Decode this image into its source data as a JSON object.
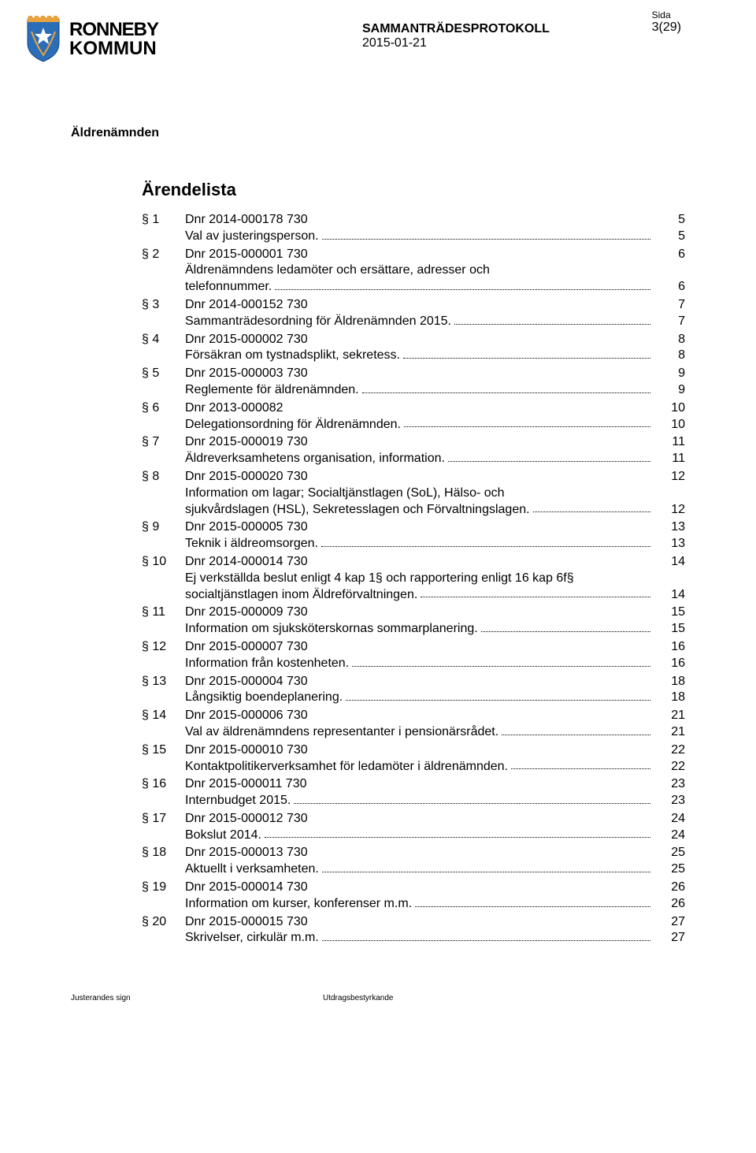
{
  "logo": {
    "top_text": "RONNEBY",
    "bottom_text": "KOMMUN"
  },
  "header": {
    "title": "SAMMANTRÄDESPROTOKOLL",
    "date": "2015-01-21",
    "sida_label": "Sida",
    "page_num": "3(29)"
  },
  "section_label": "Äldrenämnden",
  "list_title": "Ärendelista",
  "items": [
    {
      "section": "§ 1",
      "dnr": "Dnr 2014-000178 730",
      "page": "5",
      "desc": "Val av justeringsperson.",
      "desc_page": "5"
    },
    {
      "section": "§ 2",
      "dnr": "Dnr 2015-000001 730",
      "page": "6",
      "desc": "Äldrenämndens ledamöter och ersättare, adresser och\ntelefonnummer.",
      "desc_page": "6"
    },
    {
      "section": "§ 3",
      "dnr": "Dnr 2014-000152 730",
      "page": "7",
      "desc": "Sammanträdesordning för Äldrenämnden 2015.",
      "desc_page": "7"
    },
    {
      "section": "§ 4",
      "dnr": "Dnr 2015-000002 730",
      "page": "8",
      "desc": "Försäkran om tystnadsplikt, sekretess.",
      "desc_page": "8"
    },
    {
      "section": "§ 5",
      "dnr": "Dnr 2015-000003 730",
      "page": "9",
      "desc": "Reglemente för äldrenämnden.",
      "desc_page": "9"
    },
    {
      "section": "§ 6",
      "dnr": "Dnr 2013-000082",
      "page": "10",
      "desc": "Delegationsordning för Äldrenämnden.",
      "desc_page": "10"
    },
    {
      "section": "§ 7",
      "dnr": "Dnr 2015-000019 730",
      "page": "11",
      "desc": "Äldreverksamhetens organisation, information.",
      "desc_page": "11"
    },
    {
      "section": "§ 8",
      "dnr": "Dnr 2015-000020 730",
      "page": "12",
      "desc": "Information om lagar; Socialtjänstlagen (SoL), Hälso- och\nsjukvårdslagen (HSL), Sekretesslagen och Förvaltningslagen.",
      "desc_page": "12"
    },
    {
      "section": "§ 9",
      "dnr": "Dnr 2015-000005 730",
      "page": "13",
      "desc": "Teknik i äldreomsorgen.",
      "desc_page": "13"
    },
    {
      "section": "§ 10",
      "dnr": "Dnr 2014-000014 730",
      "page": "14",
      "desc": "Ej verkställda beslut enligt 4 kap 1§ och rapportering enligt 16 kap 6f§\nsocialtjänstlagen inom Äldreförvaltningen.",
      "desc_page": "14"
    },
    {
      "section": "§ 11",
      "dnr": "Dnr 2015-000009 730",
      "page": "15",
      "desc": "Information om sjuksköterskornas sommarplanering.",
      "desc_page": "15"
    },
    {
      "section": "§ 12",
      "dnr": "Dnr 2015-000007 730",
      "page": "16",
      "desc": "Information från kostenheten.",
      "desc_page": "16"
    },
    {
      "section": "§ 13",
      "dnr": "Dnr 2015-000004 730",
      "page": "18",
      "desc": "Långsiktig boendeplanering.",
      "desc_page": "18"
    },
    {
      "section": "§ 14",
      "dnr": "Dnr 2015-000006 730",
      "page": "21",
      "desc": "Val av äldrenämndens representanter i pensionärsrådet.",
      "desc_page": "21"
    },
    {
      "section": "§ 15",
      "dnr": "Dnr 2015-000010 730",
      "page": "22",
      "desc": "Kontaktpolitikerverksamhet för ledamöter i äldrenämnden.",
      "desc_page": "22"
    },
    {
      "section": "§ 16",
      "dnr": "Dnr 2015-000011 730",
      "page": "23",
      "desc": "Internbudget 2015.",
      "desc_page": "23"
    },
    {
      "section": "§ 17",
      "dnr": "Dnr 2015-000012 730",
      "page": "24",
      "desc": "Bokslut 2014.",
      "desc_page": "24"
    },
    {
      "section": "§ 18",
      "dnr": "Dnr 2015-000013 730",
      "page": "25",
      "desc": "Aktuellt i verksamheten.",
      "desc_page": "25"
    },
    {
      "section": "§ 19",
      "dnr": "Dnr 2015-000014 730",
      "page": "26",
      "desc": "Information om kurser, konferenser m.m.",
      "desc_page": "26"
    },
    {
      "section": "§ 20",
      "dnr": "Dnr 2015-000015 730",
      "page": "27",
      "desc": "Skrivelser, cirkulär m.m.",
      "desc_page": "27"
    }
  ],
  "footer": {
    "left": "Justerandes sign",
    "right": "Utdragsbestyrkande"
  },
  "colors": {
    "text": "#000000",
    "background": "#ffffff",
    "shield_blue": "#2a6db8",
    "shield_orange": "#e8a23e",
    "shield_white": "#ffffff"
  }
}
